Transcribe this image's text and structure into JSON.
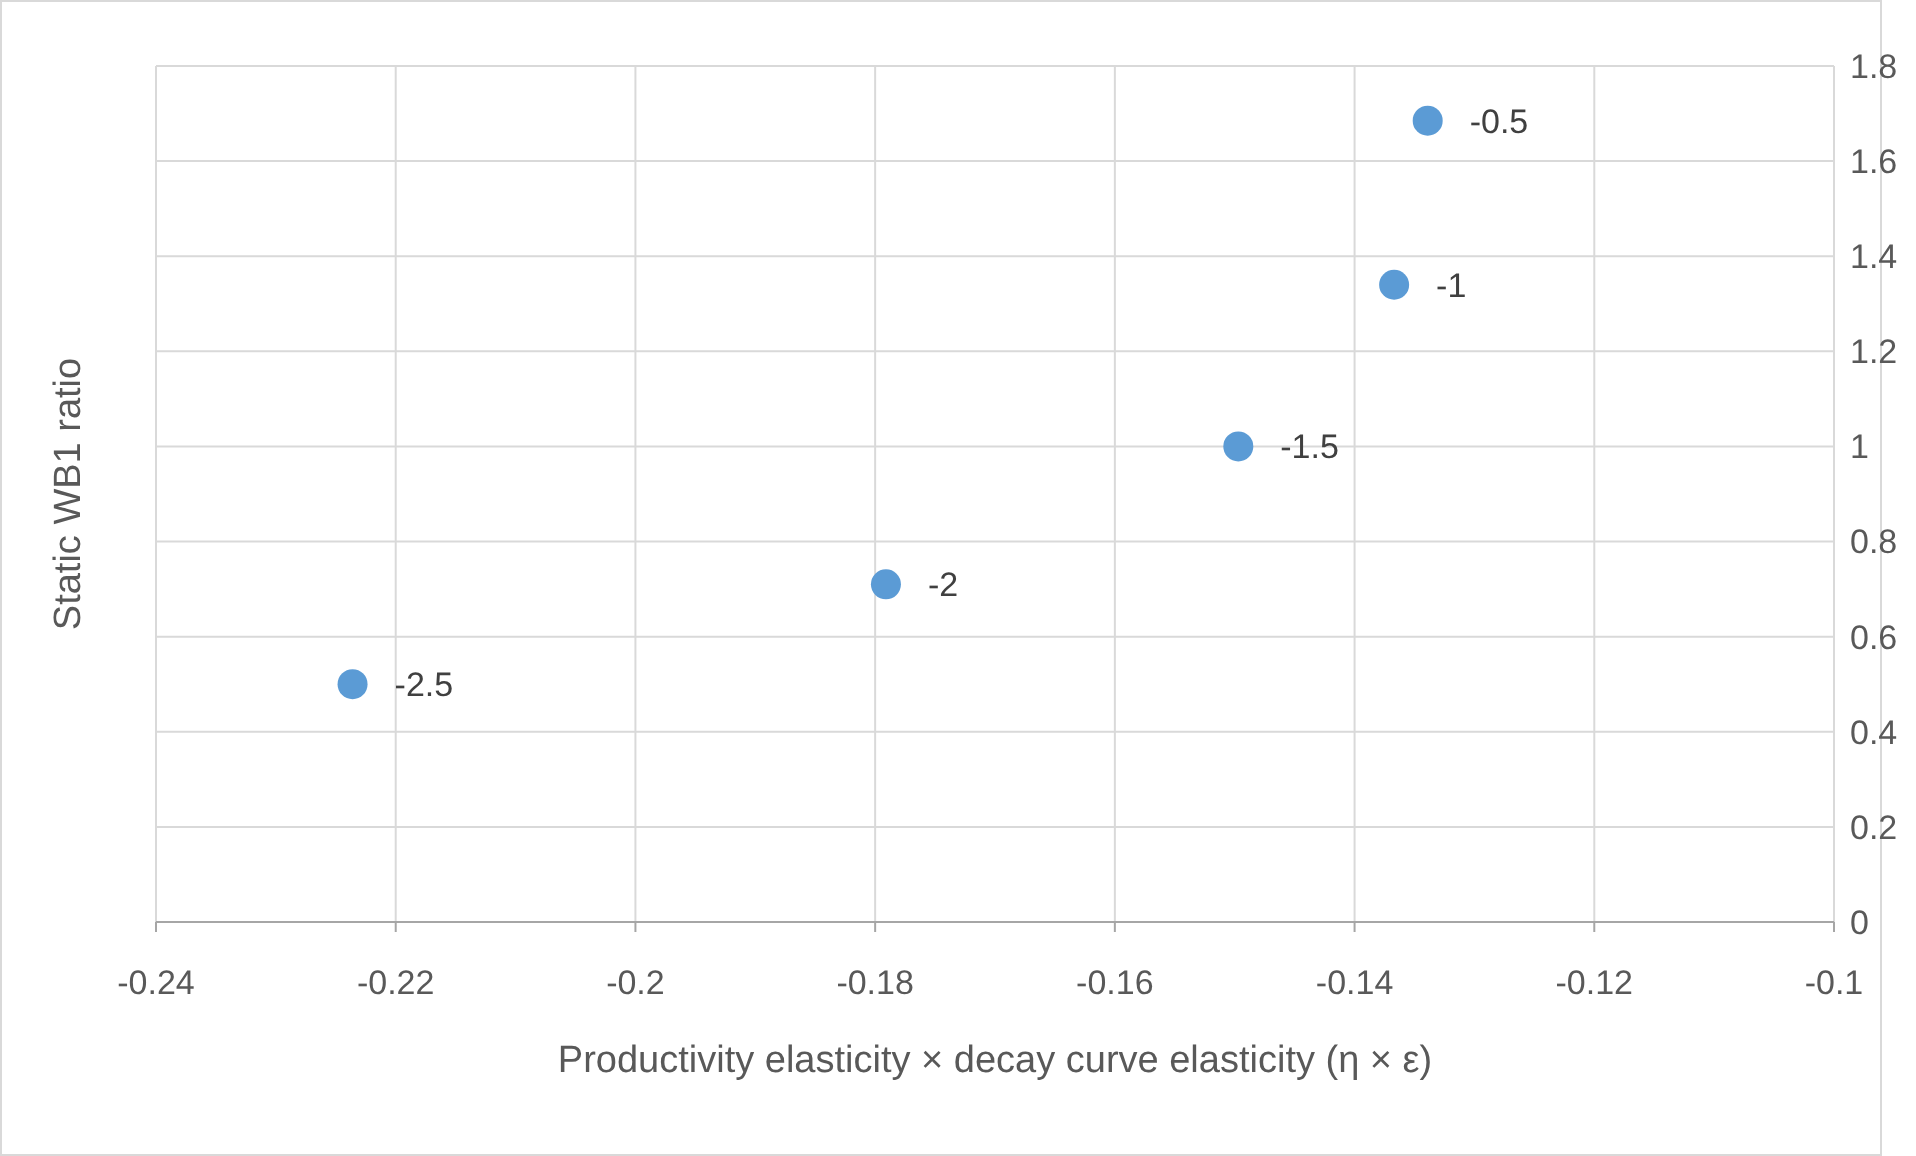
{
  "chart_data": {
    "type": "scatter",
    "xlabel": "Productivity elasticity × decay curve elasticity (η × ε)",
    "ylabel": "Static WB1 ratio",
    "x": [
      -0.2236,
      -0.1791,
      -0.1497,
      -0.1367,
      -0.1339
    ],
    "series": [
      {
        "color": "#5b9bd5",
        "values": [
          0.5,
          0.71,
          1.0,
          1.34,
          1.685
        ]
      }
    ],
    "annotations": [
      {
        "text": "-2.5",
        "x": -0.2236,
        "y": 0.5
      },
      {
        "text": "-2",
        "x": -0.1791,
        "y": 0.71
      },
      {
        "text": "-1.5",
        "x": -0.1497,
        "y": 1.0
      },
      {
        "text": "-1",
        "x": -0.1367,
        "y": 1.34
      },
      {
        "text": "-0.5",
        "x": -0.1339,
        "y": 1.685
      }
    ],
    "xlim": [
      -0.24,
      -0.1
    ],
    "xticks": [
      -0.24,
      -0.22,
      -0.2,
      -0.18,
      -0.16,
      -0.14,
      -0.12,
      -0.1
    ],
    "ylim": [
      0,
      1.8
    ],
    "yticks": [
      0,
      0.2,
      0.4,
      0.6,
      0.8,
      1,
      1.2,
      1.4,
      1.6,
      1.8
    ],
    "grid": true,
    "marker": "circle"
  }
}
